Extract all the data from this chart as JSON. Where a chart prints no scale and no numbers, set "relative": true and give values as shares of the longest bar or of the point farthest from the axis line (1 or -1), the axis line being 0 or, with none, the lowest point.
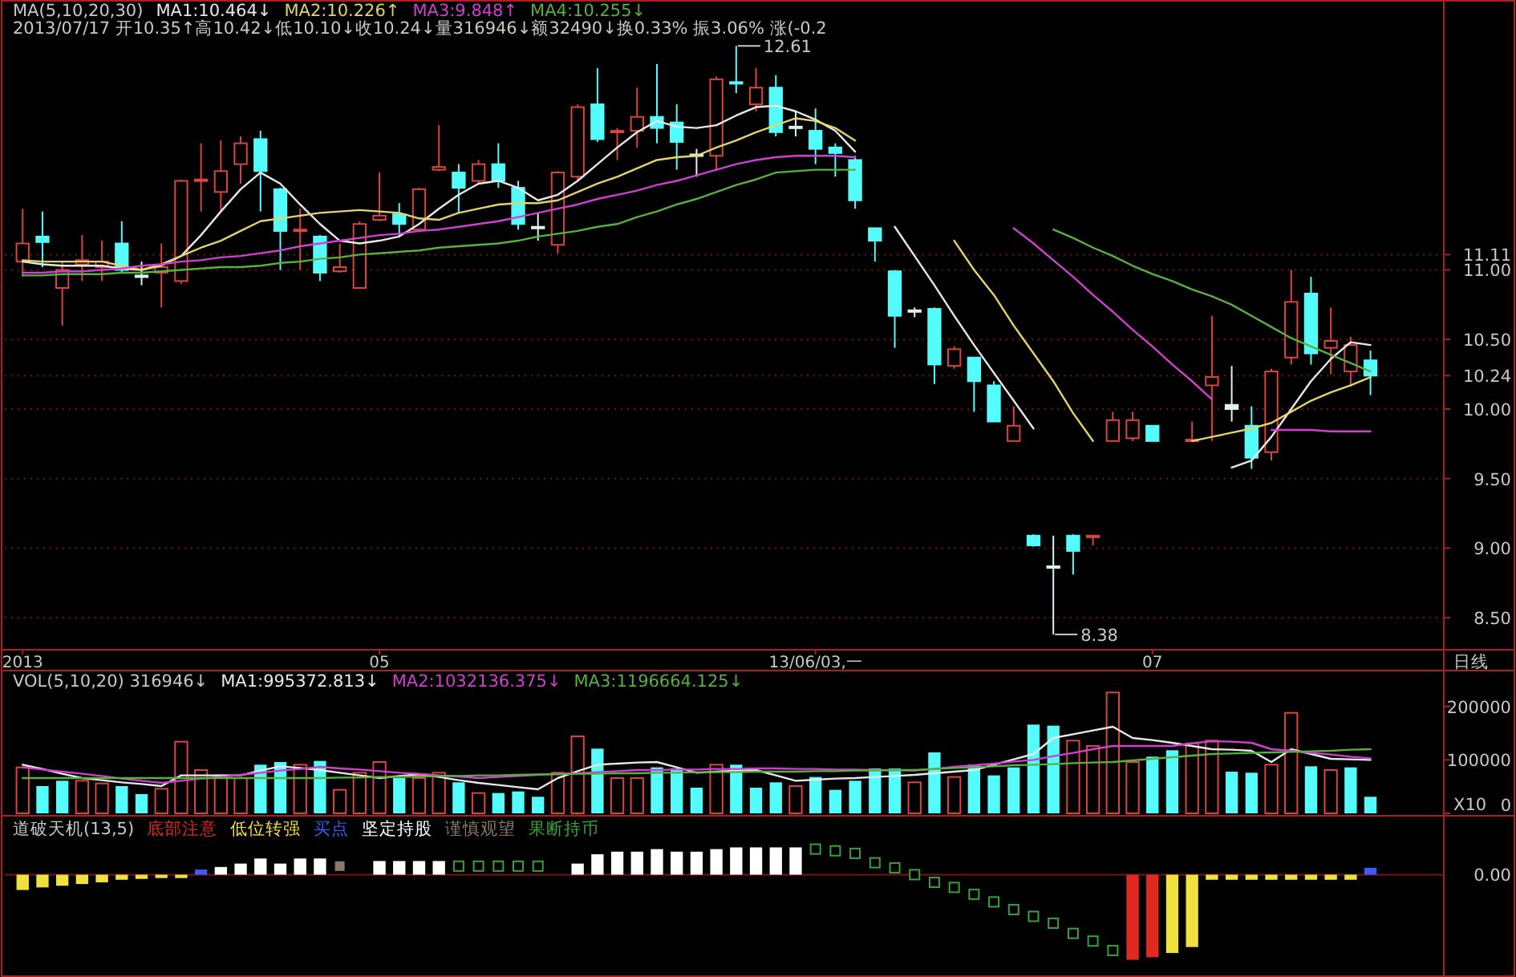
{
  "chart_data": [
    {
      "type": "candlestick",
      "title": "MA(5,10,20,30)",
      "subtitle": "2013/07/17 开10.35↑高10.42↓低10.10↓收10.24↓量316946↓额32490↓换0.33% 振3.06% 涨(-0.2",
      "categories": [
        "2013",
        null,
        null,
        null,
        null,
        null,
        null,
        null,
        null,
        null,
        null,
        null,
        null,
        null,
        null,
        null,
        null,
        null,
        "05",
        null,
        null,
        null,
        null,
        null,
        null,
        null,
        null,
        null,
        null,
        null,
        null,
        null,
        null,
        null,
        null,
        null,
        null,
        null,
        null,
        null,
        "13/06/03,一",
        null,
        null,
        null,
        null,
        null,
        null,
        null,
        null,
        null,
        null,
        null,
        null,
        null,
        null,
        null,
        null,
        "07",
        null,
        null,
        null,
        null,
        null,
        null,
        null,
        null,
        null,
        null,
        null
      ],
      "ohlc": [
        [
          11.06,
          11.44,
          10.95,
          11.19
        ],
        [
          11.24,
          11.42,
          11.02,
          11.2
        ],
        [
          10.87,
          11.06,
          10.6,
          11.0
        ],
        [
          11.04,
          11.25,
          10.92,
          11.07
        ],
        [
          11.02,
          11.21,
          10.92,
          11.06
        ],
        [
          11.19,
          11.35,
          10.98,
          11.0
        ],
        [
          10.96,
          11.06,
          10.89,
          10.95
        ],
        [
          10.98,
          11.19,
          10.73,
          11.02
        ],
        [
          10.92,
          11.65,
          10.9,
          11.64
        ],
        [
          11.64,
          11.91,
          11.42,
          11.65
        ],
        [
          11.56,
          11.93,
          11.42,
          11.71
        ],
        [
          11.76,
          11.96,
          11.62,
          11.91
        ],
        [
          11.94,
          12.0,
          11.42,
          11.71
        ],
        [
          11.58,
          11.59,
          11.0,
          11.28
        ],
        [
          11.28,
          11.44,
          11.0,
          11.29
        ],
        [
          11.24,
          11.25,
          10.92,
          10.98
        ],
        [
          10.99,
          11.19,
          10.98,
          11.02
        ],
        [
          10.87,
          11.35,
          10.87,
          11.33
        ],
        [
          11.36,
          11.7,
          11.35,
          11.39
        ],
        [
          11.4,
          11.48,
          11.24,
          11.33
        ],
        [
          11.29,
          11.59,
          11.27,
          11.58
        ],
        [
          11.72,
          12.04,
          11.71,
          11.74
        ],
        [
          11.7,
          11.76,
          11.41,
          11.59
        ],
        [
          11.64,
          11.79,
          11.62,
          11.76
        ],
        [
          11.76,
          11.91,
          11.59,
          11.64
        ],
        [
          11.59,
          11.64,
          11.29,
          11.33
        ],
        [
          11.31,
          11.41,
          11.21,
          11.3
        ],
        [
          11.18,
          11.71,
          11.12,
          11.7
        ],
        [
          11.67,
          12.19,
          11.65,
          12.17
        ],
        [
          12.19,
          12.45,
          11.92,
          11.94
        ],
        [
          11.99,
          12.02,
          11.79,
          12.0
        ],
        [
          12.0,
          12.31,
          11.88,
          12.1
        ],
        [
          12.1,
          12.48,
          11.91,
          12.02
        ],
        [
          12.06,
          12.19,
          11.72,
          11.92
        ],
        [
          11.83,
          11.87,
          11.67,
          11.82
        ],
        [
          11.82,
          12.39,
          11.71,
          12.37
        ],
        [
          12.35,
          12.61,
          12.27,
          12.34
        ],
        [
          12.19,
          12.45,
          12.14,
          12.31
        ],
        [
          12.31,
          12.4,
          11.96,
          11.99
        ],
        [
          12.03,
          12.14,
          11.96,
          12.02
        ],
        [
          12.0,
          12.16,
          11.76,
          11.87
        ],
        [
          11.88,
          11.91,
          11.67,
          11.84
        ],
        [
          11.79,
          11.82,
          11.44,
          11.5
        ],
        [
          11.3,
          11.3,
          11.06,
          11.21
        ],
        [
          10.99,
          11.0,
          10.44,
          10.67
        ],
        [
          10.71,
          10.73,
          10.66,
          10.7
        ],
        [
          10.72,
          10.73,
          10.18,
          10.32
        ],
        [
          10.31,
          10.45,
          10.29,
          10.43
        ],
        [
          10.37,
          10.37,
          9.98,
          10.2
        ],
        [
          10.17,
          10.2,
          9.91,
          9.91
        ],
        [
          9.77,
          10.02,
          9.77,
          9.88
        ],
        [
          9.09,
          9.1,
          9.01,
          9.02
        ],
        [
          8.87,
          9.09,
          8.38,
          8.86
        ],
        [
          9.09,
          9.1,
          8.81,
          8.98
        ],
        [
          9.08,
          9.09,
          9.02,
          9.09
        ],
        [
          9.77,
          9.98,
          9.77,
          9.92
        ],
        [
          9.79,
          9.98,
          9.77,
          9.92
        ],
        [
          9.88,
          9.88,
          9.77,
          9.77
        ],
        null,
        [
          9.77,
          9.91,
          9.77,
          9.78
        ],
        [
          10.17,
          10.67,
          9.77,
          10.23
        ],
        [
          10.03,
          10.31,
          9.91,
          10.0
        ],
        [
          9.88,
          10.02,
          9.57,
          9.65
        ],
        [
          9.69,
          10.29,
          9.63,
          10.27
        ],
        [
          10.37,
          11.0,
          10.32,
          10.77
        ],
        [
          10.83,
          10.95,
          10.32,
          10.4
        ],
        [
          10.44,
          10.73,
          10.25,
          10.49
        ],
        [
          10.27,
          10.52,
          10.16,
          10.46
        ],
        [
          10.35,
          10.42,
          10.1,
          10.24
        ]
      ],
      "colors": [
        "#d8453e",
        "#54fcfc",
        "#d8453e",
        "#d8453e",
        "#d8453e",
        "#54fcfc",
        "#dff2f2",
        "#d8453e",
        "#d8453e",
        "#d8453e",
        "#d8453e",
        "#d8453e",
        "#54fcfc",
        "#54fcfc",
        "#d8453e",
        "#54fcfc",
        "#d8453e",
        "#d8453e",
        "#d8453e",
        "#54fcfc",
        "#d8453e",
        "#d8453e",
        "#54fcfc",
        "#d8453e",
        "#54fcfc",
        "#54fcfc",
        "#dff2f2",
        "#d8453e",
        "#d8453e",
        "#54fcfc",
        "#d8453e",
        "#d8453e",
        "#54fcfc",
        "#54fcfc",
        "#dff2f2",
        "#d8453e",
        "#54fcfc",
        "#d8453e",
        "#54fcfc",
        "#dff2f2",
        "#54fcfc",
        "#54fcfc",
        "#54fcfc",
        "#54fcfc",
        "#54fcfc",
        "#dff2f2",
        "#54fcfc",
        "#d8453e",
        "#54fcfc",
        "#54fcfc",
        "#d8453e",
        "#54fcfc",
        "#dff2f2",
        "#54fcfc",
        "#d8453e",
        "#d8453e",
        "#d8453e",
        "#54fcfc",
        null,
        "#d8453e",
        "#d8453e",
        "#dff2f2",
        "#54fcfc",
        "#d8453e",
        "#d8453e",
        "#54fcfc",
        "#d8453e",
        "#d8453e",
        "#54fcfc"
      ],
      "ylim": [
        8.27,
        12.94
      ],
      "yticks": [
        {
          "value": 8.5,
          "label": "8.50"
        },
        {
          "value": 9,
          "label": "9.00"
        },
        {
          "value": 9.5,
          "label": "9.50"
        },
        {
          "value": 10,
          "label": "10.00"
        },
        10.24,
        {
          "value": 10.5,
          "label": "10.50"
        },
        {
          "value": 11,
          "label": "11.00"
        },
        11.11
      ],
      "grid": "y",
      "legend": "top left",
      "series": [
        {
          "type": "line",
          "name": "MA1:10.464↓",
          "color": "#e8e8e8",
          "values": [
            11.06,
            11.04,
            11.03,
            11.03,
            11.03,
            11.01,
            11.0,
            11.04,
            11.1,
            11.25,
            11.42,
            11.58,
            11.7,
            11.62,
            11.47,
            11.33,
            11.21,
            11.19,
            11.21,
            11.24,
            11.33,
            11.44,
            11.54,
            11.62,
            11.64,
            11.59,
            11.5,
            11.54,
            11.64,
            11.76,
            11.88,
            11.99,
            12.07,
            12.03,
            12.02,
            12.04,
            12.11,
            12.17,
            12.18,
            12.14,
            12.08,
            12.0,
            11.85,
            null,
            11.31,
            11.1,
            10.89,
            10.67,
            10.46,
            10.26,
            10.06,
            9.86,
            null,
            null,
            null,
            null,
            null,
            null,
            null,
            null,
            null,
            9.58,
            9.63,
            9.8,
            10.0,
            10.2,
            10.36,
            10.48,
            10.46
          ]
        },
        {
          "type": "line",
          "name": "MA2:10.226↑",
          "color": "#e2d46a",
          "values": [
            11.07,
            11.06,
            11.06,
            11.06,
            11.06,
            11.03,
            11.0,
            11.03,
            11.1,
            11.16,
            11.21,
            11.28,
            11.35,
            11.37,
            11.39,
            11.41,
            11.42,
            11.43,
            11.42,
            11.41,
            11.37,
            11.36,
            11.41,
            11.44,
            11.47,
            11.48,
            11.48,
            11.5,
            11.56,
            11.62,
            11.67,
            11.73,
            11.79,
            11.81,
            11.82,
            11.88,
            11.93,
            11.99,
            12.04,
            12.09,
            12.07,
            12.02,
            11.93,
            null,
            null,
            null,
            null,
            11.21,
            11.0,
            10.82,
            10.6,
            10.4,
            10.2,
            9.97,
            9.77,
            null,
            null,
            null,
            null,
            9.77,
            9.8,
            9.83,
            9.86,
            9.9,
            9.98,
            10.06,
            10.12,
            10.17,
            10.23
          ]
        },
        {
          "type": "line",
          "name": "MA3:9.848↑",
          "color": "#d040d0",
          "values": [
            10.98,
            10.98,
            10.99,
            10.99,
            11.0,
            11.01,
            11.03,
            11.04,
            11.06,
            11.07,
            11.09,
            11.1,
            11.12,
            11.14,
            11.17,
            11.19,
            11.21,
            11.23,
            11.25,
            11.26,
            11.28,
            11.29,
            11.31,
            11.33,
            11.35,
            11.38,
            11.41,
            11.44,
            11.47,
            11.51,
            11.54,
            11.57,
            11.61,
            11.64,
            11.68,
            11.72,
            11.76,
            11.79,
            11.81,
            11.82,
            11.82,
            11.82,
            11.81,
            null,
            null,
            null,
            null,
            null,
            null,
            null,
            11.3,
            11.19,
            11.07,
            10.95,
            10.82,
            10.7,
            10.57,
            10.45,
            10.32,
            10.2,
            10.07,
            null,
            null,
            9.85,
            9.85,
            9.85,
            9.84,
            9.84,
            9.84
          ]
        },
        {
          "type": "line",
          "name": "MA4:10.255↓",
          "color": "#58b040",
          "values": [
            10.96,
            10.96,
            10.97,
            10.97,
            10.97,
            10.98,
            10.98,
            10.99,
            11.0,
            11.01,
            11.02,
            11.02,
            11.03,
            11.05,
            11.06,
            11.08,
            11.09,
            11.11,
            11.12,
            11.13,
            11.14,
            11.16,
            11.17,
            11.18,
            11.19,
            11.21,
            11.24,
            11.26,
            11.28,
            11.31,
            11.33,
            11.38,
            11.42,
            11.47,
            11.51,
            11.56,
            11.61,
            11.65,
            11.7,
            11.71,
            11.72,
            11.72,
            11.72,
            null,
            null,
            null,
            null,
            null,
            null,
            null,
            null,
            null,
            11.29,
            11.23,
            11.16,
            11.1,
            11.03,
            10.97,
            10.92,
            10.86,
            10.81,
            10.75,
            10.67,
            10.59,
            10.51,
            10.45,
            10.39,
            10.33,
            10.27
          ]
        }
      ],
      "annotations": [
        "12.61",
        "8.38",
        "日线"
      ]
    },
    {
      "type": "bar",
      "title": "VOL(5,10,20) 316946↓",
      "categories": [
        null,
        null,
        null,
        null,
        null,
        null,
        null,
        null,
        null,
        null,
        null,
        null,
        null,
        null,
        null,
        null,
        null,
        null,
        null,
        null,
        null,
        null,
        null,
        null,
        null,
        null,
        null,
        null,
        null,
        null,
        null,
        null,
        null,
        null,
        null,
        null,
        null,
        null,
        null,
        null,
        null,
        null,
        null,
        null,
        null,
        null,
        null,
        null,
        null,
        null,
        null,
        null,
        null,
        null,
        null,
        null,
        null,
        null,
        null,
        null,
        null,
        null,
        null,
        null,
        null,
        null,
        null,
        null,
        null
      ],
      "ylim": [
        0,
        267000
      ],
      "yticks": [
        0,
        100000,
        200000
      ],
      "tick_labels": "y",
      "legend": "top left",
      "series": [
        {
          "color": "#d8453e",
          "line_style": "solid",
          "values": [
            86000,
            null,
            null,
            61000,
            56000,
            null,
            null,
            46000,
            134000,
            81000,
            71000,
            66000,
            null,
            null,
            91000,
            null,
            44000,
            76000,
            96000,
            null,
            66000,
            76000,
            null,
            38000,
            null,
            null,
            null,
            76000,
            144000,
            null,
            66000,
            66000,
            null,
            null,
            null,
            91000,
            null,
            null,
            null,
            51000,
            null,
            null,
            null,
            null,
            null,
            58000,
            null,
            68000,
            null,
            null,
            null,
            null,
            null,
            136000,
            126000,
            226000,
            96000,
            null,
            null,
            131000,
            136000,
            null,
            null,
            91000,
            188000,
            null,
            81000,
            null,
            null
          ]
        },
        {
          "color": "#54fcfc",
          "values": [
            null,
            51000,
            61000,
            null,
            null,
            51000,
            36000,
            null,
            null,
            null,
            null,
            null,
            91000,
            96000,
            null,
            98000,
            null,
            null,
            null,
            66000,
            null,
            null,
            58000,
            null,
            38000,
            41000,
            31000,
            null,
            null,
            121000,
            null,
            null,
            86000,
            84000,
            48000,
            null,
            91000,
            48000,
            58000,
            null,
            68000,
            44000,
            61000,
            84000,
            84000,
            null,
            114000,
            null,
            91000,
            71000,
            86000,
            166000,
            164000,
            null,
            null,
            null,
            null,
            106000,
            118000,
            null,
            null,
            78000,
            76000,
            null,
            null,
            88000,
            null,
            86000,
            31000
          ]
        },
        {
          "type": "line",
          "name": "MA1:995372.813↓",
          "color": "#e8e8e8",
          "values": [
            91000,
            83000,
            74000,
            66000,
            62000,
            58000,
            55000,
            51000,
            71000,
            71000,
            71000,
            71000,
            80000,
            88000,
            85000,
            81000,
            76000,
            71000,
            66000,
            70000,
            73000,
            68000,
            62000,
            57000,
            53000,
            49000,
            45000,
            66000,
            79000,
            91000,
            93000,
            95000,
            96000,
            86000,
            76000,
            78000,
            80000,
            81000,
            71000,
            61000,
            63000,
            65000,
            66000,
            68000,
            70000,
            72000,
            75000,
            78000,
            81000,
            91000,
            101000,
            111000,
            141000,
            148000,
            155000,
            162000,
            141000,
            137000,
            132000,
            126000,
            120000,
            119000,
            117000,
            96000,
            120000,
            111000,
            102000,
            101000,
            100000
          ]
        },
        {
          "type": "line",
          "name": "MA2:1032136.375↓",
          "color": "#d040d0",
          "values": [
            86000,
            82000,
            78000,
            74000,
            70000,
            65000,
            61000,
            57000,
            61000,
            65000,
            68000,
            72000,
            76000,
            80000,
            83000,
            87000,
            84000,
            82000,
            79000,
            76000,
            74000,
            71000,
            69000,
            66000,
            68000,
            70000,
            72000,
            74000,
            75000,
            77000,
            79000,
            81000,
            81000,
            82000,
            82000,
            83000,
            83000,
            84000,
            84000,
            83000,
            83000,
            82000,
            82000,
            81000,
            81000,
            80000,
            83000,
            87000,
            90000,
            93000,
            97000,
            100000,
            107000,
            113000,
            120000,
            126000,
            126000,
            126000,
            126000,
            131000,
            135000,
            134000,
            132000,
            120000,
            117000,
            113000,
            110000,
            106000,
            103000
          ]
        },
        {
          "type": "line",
          "name": "MA3:1196664.125↓",
          "color": "#58b040",
          "values": [
            66000,
            66000,
            66000,
            66000,
            66000,
            66000,
            66000,
            66000,
            66000,
            66000,
            66000,
            66000,
            66000,
            66000,
            66000,
            66000,
            67000,
            67000,
            68000,
            68000,
            69000,
            70000,
            70000,
            71000,
            71000,
            72000,
            73000,
            73000,
            74000,
            74000,
            75000,
            75000,
            76000,
            76000,
            77000,
            77000,
            77000,
            78000,
            78000,
            78000,
            79000,
            79000,
            80000,
            80000,
            81000,
            81000,
            83000,
            85000,
            86000,
            88000,
            90000,
            91000,
            92000,
            94000,
            95000,
            96000,
            99000,
            102000,
            105000,
            108000,
            111000,
            112000,
            113000,
            114000,
            115000,
            116000,
            117000,
            119000,
            120000
          ]
        }
      ],
      "annotations": [
        "X10"
      ]
    },
    {
      "type": "bar",
      "title": "道破天机(13,5)",
      "relative": true,
      "categories": [
        null,
        null,
        null,
        null,
        null,
        null,
        null,
        null,
        null,
        null,
        null,
        null,
        null,
        null,
        null,
        null,
        null,
        null,
        null,
        null,
        null,
        null,
        null,
        null,
        null,
        null,
        null,
        null,
        null,
        null,
        null,
        null,
        null,
        null,
        null,
        null,
        null,
        null,
        null,
        null,
        null,
        null,
        null,
        null,
        null,
        null,
        null,
        null,
        null,
        null,
        null,
        null,
        null,
        null,
        null,
        null,
        null,
        null,
        null,
        null,
        null,
        null,
        null,
        null,
        null,
        null,
        null,
        null,
        null
      ],
      "tick_labels": false,
      "legend": "top left",
      "marker": "square",
      "ref_lines": [
        {
          "axis": "y",
          "value": 0,
          "color": "#7a1414"
        }
      ],
      "series": [
        {
          "name": "底部注意",
          "color": "#e02a20",
          "values": [
            null,
            null,
            null,
            null,
            null,
            null,
            null,
            null,
            null,
            null,
            null,
            null,
            null,
            null,
            null,
            null,
            null,
            null,
            null,
            null,
            null,
            null,
            null,
            null,
            null,
            null,
            null,
            null,
            null,
            null,
            null,
            null,
            null,
            null,
            null,
            null,
            null,
            null,
            null,
            null,
            null,
            null,
            null,
            null,
            null,
            null,
            null,
            null,
            null,
            null,
            null,
            null,
            null,
            null,
            null,
            null,
            -1,
            -0.97,
            null,
            null,
            null,
            null,
            null,
            null,
            null,
            null,
            null,
            null,
            null
          ]
        },
        {
          "name": "低位转强",
          "color": "#f0e040",
          "values": [
            -0.18,
            -0.15,
            -0.13,
            -0.11,
            -0.09,
            -0.06,
            -0.05,
            -0.04,
            -0.04,
            null,
            null,
            null,
            null,
            null,
            null,
            null,
            null,
            null,
            null,
            null,
            null,
            null,
            null,
            null,
            null,
            null,
            null,
            null,
            null,
            null,
            null,
            null,
            null,
            null,
            null,
            null,
            null,
            null,
            null,
            null,
            null,
            null,
            null,
            null,
            null,
            null,
            null,
            null,
            null,
            null,
            null,
            null,
            null,
            null,
            null,
            null,
            null,
            null,
            -0.92,
            -0.85,
            -0.06,
            -0.06,
            -0.06,
            -0.06,
            -0.06,
            -0.06,
            -0.06,
            -0.06,
            null
          ]
        },
        {
          "name": "买点",
          "color": "#3a5cff",
          "values": [
            null,
            null,
            null,
            null,
            null,
            null,
            null,
            null,
            null,
            0.06,
            null,
            null,
            null,
            null,
            null,
            null,
            null,
            null,
            null,
            null,
            null,
            null,
            null,
            null,
            null,
            null,
            null,
            null,
            null,
            null,
            null,
            null,
            null,
            null,
            null,
            null,
            null,
            null,
            null,
            null,
            null,
            null,
            null,
            null,
            null,
            null,
            null,
            null,
            null,
            null,
            null,
            null,
            null,
            null,
            null,
            null,
            null,
            null,
            null,
            null,
            null,
            null,
            null,
            null,
            null,
            null,
            null,
            null,
            0.08
          ]
        },
        {
          "name": "坚定持股",
          "color": "#ffffff",
          "values": [
            null,
            null,
            null,
            null,
            null,
            null,
            null,
            null,
            null,
            null,
            0.09,
            0.13,
            0.19,
            0.13,
            0.19,
            0.19,
            null,
            null,
            0.16,
            0.16,
            0.16,
            0.16,
            null,
            null,
            null,
            null,
            null,
            null,
            0.13,
            0.24,
            0.27,
            0.27,
            0.3,
            0.27,
            0.27,
            0.3,
            0.32,
            0.32,
            0.32,
            0.32,
            null,
            null,
            null,
            null,
            null,
            null,
            null,
            null,
            null,
            null,
            null,
            null,
            null,
            null,
            null,
            null,
            null,
            null,
            null,
            null,
            null,
            null,
            null,
            null,
            null,
            null,
            null,
            null,
            null
          ]
        },
        {
          "name": "谨慎观望",
          "color": "#8a7868",
          "type": "scatter",
          "values": [
            null,
            null,
            null,
            null,
            null,
            null,
            null,
            null,
            null,
            null,
            null,
            null,
            null,
            null,
            null,
            null,
            0.1,
            null,
            null,
            null,
            null,
            null,
            null,
            null,
            null,
            null,
            null,
            null,
            null,
            null,
            null,
            null,
            null,
            null,
            null,
            null,
            null,
            null,
            null,
            null,
            null,
            null,
            null,
            null,
            null,
            null,
            null,
            null,
            null,
            null,
            null,
            null,
            null,
            null,
            null,
            null,
            null,
            null,
            null,
            null,
            null,
            null,
            null,
            null,
            null,
            null,
            null,
            null,
            null
          ]
        },
        {
          "name": "果断持币",
          "color": "#3aa03a",
          "type": "scatter",
          "line_style": "solid",
          "values": [
            null,
            null,
            null,
            null,
            null,
            null,
            null,
            null,
            null,
            null,
            null,
            null,
            null,
            null,
            null,
            null,
            null,
            null,
            null,
            null,
            null,
            null,
            0.1,
            0.1,
            0.1,
            0.1,
            0.1,
            null,
            null,
            null,
            null,
            null,
            null,
            null,
            null,
            null,
            null,
            null,
            null,
            null,
            0.3,
            0.28,
            0.25,
            0.14,
            0.08,
            0,
            -0.09,
            -0.15,
            -0.23,
            -0.32,
            -0.41,
            -0.49,
            -0.57,
            -0.69,
            -0.78,
            -0.89,
            null,
            null,
            null,
            null,
            null,
            null,
            null,
            null,
            null,
            null,
            null,
            null,
            null
          ]
        }
      ],
      "annotations": [
        "0.00"
      ]
    }
  ]
}
